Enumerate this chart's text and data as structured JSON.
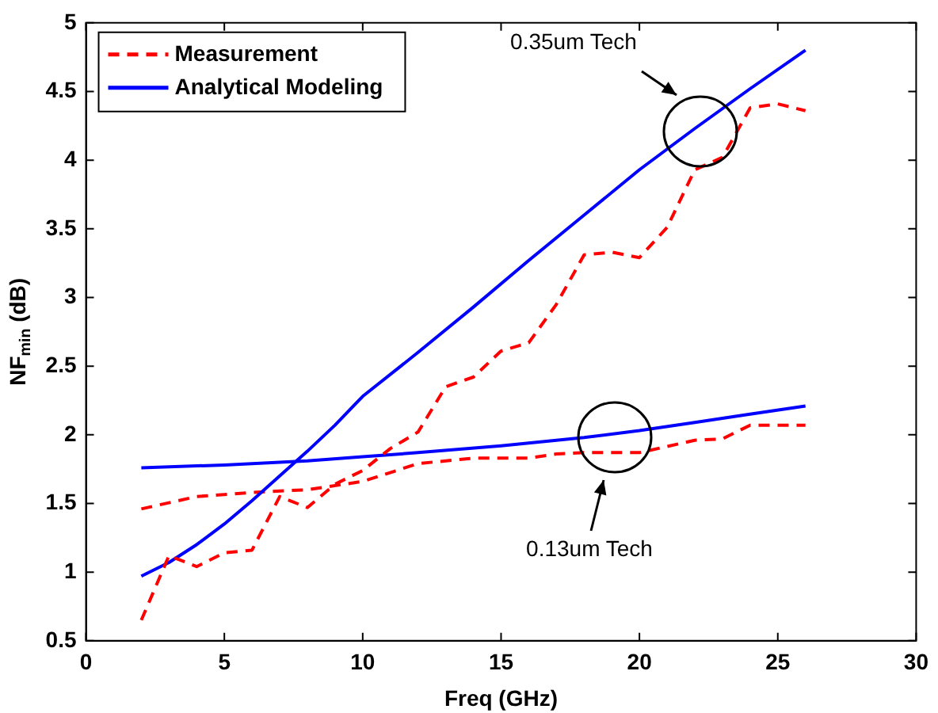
{
  "chart_data": {
    "type": "line",
    "xlabel": "Freq (GHz)",
    "ylabel": "NF$_{min}$ (dB)",
    "xlim": [
      0,
      30
    ],
    "xticks": [
      0,
      5,
      10,
      15,
      20,
      25,
      30
    ],
    "ylim": [
      0.5,
      5
    ],
    "yticks": [
      0.5,
      1,
      1.5,
      2,
      2.5,
      3,
      3.5,
      4,
      4.5,
      5
    ],
    "legend": "top left",
    "grid": false,
    "marker": "none",
    "series": [
      {
        "name": "Measurement",
        "color": "#ff0000",
        "line_style": "dashed",
        "x": [
          2,
          3,
          4,
          5,
          6,
          7,
          8,
          9,
          10,
          11,
          12,
          13,
          14,
          15,
          16,
          17,
          18,
          19,
          20,
          21,
          22,
          23,
          24,
          25,
          26
        ],
        "values": [
          0.65,
          1.12,
          1.04,
          1.14,
          1.16,
          1.55,
          1.47,
          1.64,
          1.74,
          1.9,
          2.02,
          2.35,
          2.42,
          2.61,
          2.67,
          2.95,
          3.31,
          3.33,
          3.29,
          3.51,
          3.93,
          4.02,
          4.38,
          4.41,
          4.36
        ]
      },
      {
        "name": "Analytical Modeling",
        "color": "#0000ff",
        "line_style": "solid",
        "x": [
          2,
          3,
          4,
          5,
          6,
          7,
          8,
          9,
          10,
          12,
          14,
          16,
          18,
          20,
          22,
          24,
          26
        ],
        "values": [
          0.97,
          1.07,
          1.2,
          1.35,
          1.52,
          1.7,
          1.88,
          2.07,
          2.28,
          2.6,
          2.93,
          3.27,
          3.6,
          3.93,
          4.23,
          4.52,
          4.8
        ]
      },
      {
        "color": "#ff0000",
        "line_style": "dashed",
        "x": [
          2,
          4,
          6,
          8,
          10,
          12,
          14,
          16,
          17,
          18,
          20,
          22,
          23,
          24,
          26
        ],
        "values": [
          1.46,
          1.55,
          1.58,
          1.6,
          1.66,
          1.79,
          1.83,
          1.83,
          1.86,
          1.87,
          1.87,
          1.96,
          1.97,
          2.07,
          2.07
        ]
      },
      {
        "color": "#0000ff",
        "line_style": "solid",
        "x": [
          2,
          5,
          8,
          10,
          12,
          15,
          18,
          20,
          22,
          24,
          26
        ],
        "values": [
          1.76,
          1.78,
          1.81,
          1.84,
          1.87,
          1.92,
          1.98,
          2.03,
          2.09,
          2.15,
          2.21
        ]
      }
    ],
    "annotations": [
      "0.35um Tech",
      "0.13um Tech"
    ]
  }
}
